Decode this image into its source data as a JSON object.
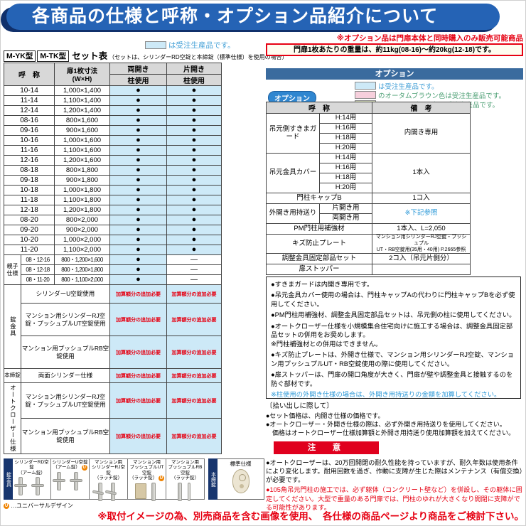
{
  "page": {
    "title": "各商品の仕様と呼称・オプション品紹介について",
    "bottom_banner": "※取付イメージの為、別売商品を含む画像を使用、　各仕様の商品ページより商品をご検討下さい。"
  },
  "colors": {
    "header_blue": "#2563b5",
    "header_dark_navy": "#10306b",
    "accent_red": "#e60012",
    "caution_red": "#e0001e",
    "option_bar_blue": "#3a6b9e",
    "table_cell_blue": "#cde9f7",
    "table_header_gray": "#d8d8d8",
    "navy_strip": "#17356e",
    "ud_orange": "#f08300",
    "link_blue": "#2e9ad8"
  },
  "left": {
    "legend": {
      "swatch_hex": "#cde9f7",
      "text": "は受注生産品です。",
      "text_color": "#3f9ed6"
    },
    "set_table": {
      "model_badges": [
        "M-YK型",
        "M-TK型"
      ],
      "title": "セット表",
      "title_note": "（セットは、シリンダーRD空錠と本締錠（標準仕様）を使用の場合）",
      "headers": {
        "name": "呼　称",
        "size": "扉1枚寸法\n(W×H)",
        "double": "両開き",
        "single": "片開き",
        "pillar": "柱使用"
      },
      "size_rows": [
        {
          "name": "10-14",
          "size": "1,000×1,400",
          "double": "●",
          "single": "●"
        },
        {
          "name": "11-14",
          "size": "1,100×1,400",
          "double": "●",
          "single": "●"
        },
        {
          "name": "12-14",
          "size": "1,200×1,400",
          "double": "●",
          "single": "●"
        },
        {
          "name": "08-16",
          "size": "800×1,600",
          "double": "●",
          "single": "●"
        },
        {
          "name": "09-16",
          "size": "900×1,600",
          "double": "●",
          "single": "●"
        },
        {
          "name": "10-16",
          "size": "1,000×1,600",
          "double": "●",
          "single": "●"
        },
        {
          "name": "11-16",
          "size": "1,100×1,600",
          "double": "●",
          "single": "●"
        },
        {
          "name": "12-16",
          "size": "1,200×1,600",
          "double": "●",
          "single": "●"
        },
        {
          "name": "08-18",
          "size": "800×1,800",
          "double": "●",
          "single": "●"
        },
        {
          "name": "09-18",
          "size": "900×1,800",
          "double": "●",
          "single": "●"
        },
        {
          "name": "10-18",
          "size": "1,000×1,800",
          "double": "●",
          "single": "●"
        },
        {
          "name": "11-18",
          "size": "1,100×1,800",
          "double": "●",
          "single": "●"
        },
        {
          "name": "12-18",
          "size": "1,200×1,800",
          "double": "●",
          "single": "●"
        },
        {
          "name": "08-20",
          "size": "800×2,000",
          "double": "●",
          "single": "●"
        },
        {
          "name": "09-20",
          "size": "900×2,000",
          "double": "●",
          "single": "●"
        },
        {
          "name": "10-20",
          "size": "1,000×2,000",
          "double": "●",
          "single": "●"
        },
        {
          "name": "11-20",
          "size": "1,100×2,000",
          "double": "●",
          "single": "●"
        }
      ],
      "oyako_label": "親子\n仕様",
      "oyako_rows": [
        {
          "name": "08・12-16",
          "size": "800・1,200×1,600",
          "double": "●",
          "single": "—"
        },
        {
          "name": "08・12-18",
          "size": "800・1,200×1,800",
          "double": "●",
          "single": "—"
        },
        {
          "name": "08・11-20",
          "size": "800・1,100×2,000",
          "double": "●",
          "single": "—"
        }
      ],
      "surcharge_text": "加算額分の追加必要",
      "lock_groups": [
        {
          "label": "錠金具",
          "vertical": true,
          "rows": [
            "シリンダーU空錠使用",
            "マンション用シリンダーRJ空錠・プッシュプルUT空錠使用",
            "マンション用プッシュプルRB空錠使用"
          ]
        },
        {
          "label": "本締錠",
          "vertical": false,
          "rows": [
            "両面シリンダー仕様"
          ]
        },
        {
          "label": "オートクローザー仕様",
          "vertical": true,
          "rows": [
            "マンション用シリンダーRJ空錠・プッシュプルUT空錠使用",
            "マンション用プッシュプルRB空錠使用"
          ]
        }
      ]
    },
    "products": {
      "side_label": "錠金具",
      "items": [
        {
          "label": "シリンダーRD空錠\n（アーム錠）",
          "ud": false,
          "icon": "arm-lever-pair-icon"
        },
        {
          "label": "シリンダーU空錠\n（アーム錠）",
          "ud": true,
          "icon": "arm-lever-pair-icon"
        },
        {
          "label": "マンション用\nシリンダーRJ空錠\n（ラッチ錠）",
          "ud": false,
          "icon": "latch-lever-icon"
        },
        {
          "label": "マンション用\nプッシュプルUT空錠\n（ラッチ錠）",
          "ud": true,
          "icon": "pushpull-box-icon"
        },
        {
          "label": "マンション用\nプッシュプルRB空錠\n（ラッチ錠）",
          "ud": false,
          "icon": "pushpull-bar-icon"
        }
      ],
      "ud_symbol": "U",
      "ud_note": "…ユニバーサルデザイン",
      "deadbolt": {
        "side_label": "本締錠",
        "label": "標準仕様",
        "icon": "oval-lock-icon"
      }
    }
  },
  "right": {
    "note_top": "※オプション品は門扉本体と同時購入のみ販売可能商品",
    "weight_box": "門扉1枚あたりの重量は、約11kg(08-16)～約20kg(12-18)です。",
    "option_header": "オプション",
    "legend": [
      {
        "swatch_hex": "#cde9f7",
        "text": "は受注生産品です。",
        "text_color": "#3f9ed6"
      },
      {
        "swatch_hex": "#f6cfdc",
        "text": "のオータムブラウン色は受注生産品です。",
        "text_color": "#4a9e72"
      },
      {
        "swatch_hex": "#e2e9c6",
        "text": "のシャイングレー色は受注生産品です。",
        "text_color": "#4a9e72"
      }
    ],
    "option_badge": "オプション",
    "option_table": {
      "headers": {
        "name": "呼　称",
        "remarks": "備　考"
      },
      "rows": [
        {
          "group": "吊元側すきまガード",
          "subs": [
            "H:14用",
            "H:16用",
            "H:18用",
            "H:20用"
          ],
          "remark": "内開き専用"
        },
        {
          "group": "吊元金具カバー",
          "subs": [
            "H:14用",
            "H:16用",
            "H:18用",
            "H:20用"
          ],
          "remark": "1本入"
        },
        {
          "group": "門柱キャップB",
          "subs": [],
          "remark": "1コ入"
        },
        {
          "group": "外開き用持送り",
          "subs": [
            "片開き用",
            "両開き用"
          ],
          "remark": "※下記参照",
          "remark_blue": true
        },
        {
          "group": "PM門柱用補強材",
          "subs": [],
          "remark": "1本入、L=2,050"
        },
        {
          "group": "キズ防止プレート",
          "subs": [],
          "remark": "マンション用シリンダーRJ空錠・プッシュプル\nUT・RB空錠用(35用・40用) P.2665参照",
          "small": true
        },
        {
          "group": "調整金具固定部品セット",
          "subs": [],
          "remark": "2コ入（吊元片側分）"
        },
        {
          "group": "扉ストッパー",
          "subs": [],
          "remark": ""
        }
      ]
    },
    "notes_box": [
      {
        "text": "●すきまガードは内開き専用です。",
        "blue": false
      },
      {
        "text": "●吊元金具カバー使用の場合は、門柱キャップAの代わりに門柱キャップBを必ず使用してください。",
        "blue": false
      },
      {
        "text": "●PM門柱用補強材、調整金具固定部品セットは、吊元側の柱に使用してください。",
        "blue": false
      },
      {
        "text": "●オートクローザー仕様を小規模集合住宅向けに施工する場合は、調整金具固定部品セットの併用をお奨めします。\n※門柱補強材との併用はできません。",
        "blue": false
      },
      {
        "text": "●キズ防止プレートは、外開き仕様で、マンション用シリンダーRJ空錠、マンション用プッシュプルUT・RB空錠使用の際に使用してください。",
        "blue": false
      },
      {
        "text": "●扉ストッパーは、門扉の開口角度が大きく、門扉が壁や調整金具と接触するのを防ぐ部材です。",
        "blue": false
      },
      {
        "text": "※柱使用の外開き仕様の場合は、外開き用持送りの金額を加算してください。",
        "blue": true
      }
    ],
    "pickup_title": "〔拾い出しに際して〕",
    "pickup_notes": [
      "●セット価格は、内開き仕様の価格です。",
      "●オートクローザー・外開き仕様の際は、必ず外開き用持送りを使用してください。",
      "　価格はオートクローザー仕様加算額と外開き用持送り使用加算額を加えてください。"
    ],
    "caution_label": "注　意",
    "caution_notes": [
      {
        "text": "●オートクローザーは、20万回開閉の耐久性能を持っていますが、耐久年数は使用条件により変化します。耐用回数を過ぎ、作動に支障が生じた際はメンテナンス（有償交換）が必要です。",
        "red": false
      },
      {
        "text": "●105角吊元門柱の施工では、必ず躯体（コンクリート壁など）を併設し、その躯体に固定してください。大型で重量のある門扉では、門柱のゆれが大きくなり開閉に支障がでる可能性があります。",
        "red": true
      }
    ]
  }
}
